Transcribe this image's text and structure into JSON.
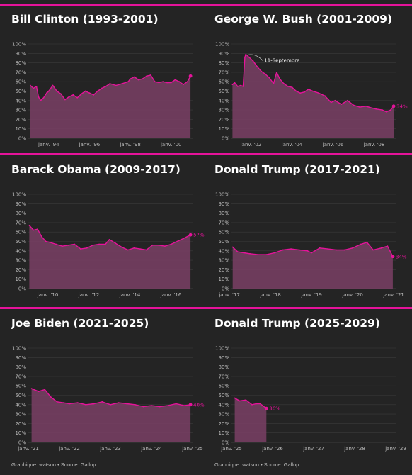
{
  "colors": {
    "accent": "#e5139a",
    "area": "#7a3f65",
    "line": "#e5139a",
    "grid": "#3a3a3a",
    "text": "#bdbdbd",
    "background": "#242424"
  },
  "footer": {
    "credit": "Graphique: watson",
    "separator": "•",
    "source": "Source: Gallup"
  },
  "chart_data": [
    {
      "type": "area",
      "title": "Bill Clinton (1993-2001)",
      "xlabel": "",
      "ylabel": "",
      "xlim": [
        1993.0,
        2001.05
      ],
      "ylim": [
        0,
        100
      ],
      "yticks": [
        "0%",
        "10%",
        "20%",
        "30%",
        "40%",
        "50%",
        "60%",
        "70%",
        "80%",
        "90%",
        "100%"
      ],
      "xticks": [
        {
          "x": 1994.0,
          "label": "janv. '94"
        },
        {
          "x": 1996.0,
          "label": "janv. '96"
        },
        {
          "x": 1998.0,
          "label": "janv. '98"
        },
        {
          "x": 2000.0,
          "label": "janv. '00"
        }
      ],
      "x": [
        1993.1,
        1993.25,
        1993.4,
        1993.5,
        1993.6,
        1993.75,
        1993.9,
        1994.0,
        1994.2,
        1994.4,
        1994.6,
        1994.8,
        1995.0,
        1995.2,
        1995.4,
        1995.6,
        1995.8,
        1996.0,
        1996.2,
        1996.4,
        1996.6,
        1996.8,
        1997.0,
        1997.3,
        1997.6,
        1997.9,
        1998.0,
        1998.2,
        1998.4,
        1998.6,
        1998.8,
        1999.0,
        1999.2,
        1999.4,
        1999.6,
        1999.8,
        2000.0,
        2000.2,
        2000.4,
        2000.6,
        2000.8,
        2000.95
      ],
      "y": [
        56,
        53,
        55,
        44,
        40,
        43,
        48,
        50,
        56,
        50,
        47,
        41,
        44,
        46,
        43,
        47,
        50,
        48,
        46,
        50,
        53,
        55,
        58,
        56,
        58,
        60,
        63,
        65,
        62,
        63,
        66,
        67,
        60,
        59,
        60,
        59,
        59,
        62,
        60,
        57,
        60,
        66
      ],
      "end_label": ""
    },
    {
      "type": "area",
      "title": "George W. Bush (2001-2009)",
      "xlabel": "",
      "ylabel": "",
      "xlim": [
        2001.05,
        2009.05
      ],
      "ylim": [
        0,
        100
      ],
      "yticks": [
        "0%",
        "10%",
        "20%",
        "30%",
        "40%",
        "50%",
        "60%",
        "70%",
        "80%",
        "90%",
        "100%"
      ],
      "xticks": [
        {
          "x": 2002.0,
          "label": "janv. '02"
        },
        {
          "x": 2004.0,
          "label": "janv. '04"
        },
        {
          "x": 2006.0,
          "label": "janv. '06"
        },
        {
          "x": 2008.0,
          "label": "janv. '08"
        }
      ],
      "x": [
        2001.1,
        2001.2,
        2001.35,
        2001.5,
        2001.62,
        2001.7,
        2001.75,
        2001.9,
        2002.1,
        2002.3,
        2002.5,
        2002.7,
        2002.9,
        2003.1,
        2003.25,
        2003.4,
        2003.6,
        2003.8,
        2004.0,
        2004.2,
        2004.4,
        2004.6,
        2004.8,
        2005.0,
        2005.3,
        2005.6,
        2005.9,
        2006.1,
        2006.4,
        2006.7,
        2007.0,
        2007.3,
        2007.6,
        2007.9,
        2008.1,
        2008.4,
        2008.6,
        2008.8,
        2008.95
      ],
      "y": [
        57,
        59,
        55,
        56,
        55,
        86,
        89,
        86,
        82,
        76,
        71,
        68,
        64,
        58,
        70,
        63,
        58,
        55,
        54,
        50,
        48,
        49,
        52,
        50,
        48,
        45,
        38,
        40,
        36,
        40,
        35,
        33,
        34,
        32,
        31,
        30,
        28,
        30,
        34
      ],
      "end_label": "34%",
      "annotation": {
        "x": 2001.75,
        "y": 89,
        "text": "11-Septembre"
      }
    },
    {
      "type": "area",
      "title": "Barack Obama (2009-2017)",
      "xlabel": "",
      "ylabel": "",
      "xlim": [
        2009.05,
        2017.05
      ],
      "ylim": [
        0,
        100
      ],
      "yticks": [
        "0%",
        "10%",
        "20%",
        "30%",
        "40%",
        "50%",
        "60%",
        "70%",
        "80%",
        "90%",
        "100%"
      ],
      "xticks": [
        {
          "x": 2010.0,
          "label": "janv. '10"
        },
        {
          "x": 2012.0,
          "label": "janv. '12"
        },
        {
          "x": 2014.0,
          "label": "janv. '14"
        },
        {
          "x": 2016.0,
          "label": "janv. '16"
        }
      ],
      "x": [
        2009.1,
        2009.3,
        2009.5,
        2009.7,
        2009.9,
        2010.1,
        2010.4,
        2010.7,
        2011.0,
        2011.3,
        2011.6,
        2011.9,
        2012.2,
        2012.5,
        2012.8,
        2013.0,
        2013.3,
        2013.6,
        2013.9,
        2014.2,
        2014.5,
        2014.8,
        2015.1,
        2015.4,
        2015.7,
        2016.0,
        2016.3,
        2016.6,
        2016.95
      ],
      "y": [
        67,
        62,
        63,
        55,
        50,
        49,
        47,
        45,
        46,
        47,
        42,
        43,
        46,
        47,
        47,
        52,
        48,
        44,
        41,
        43,
        42,
        41,
        46,
        46,
        45,
        47,
        50,
        53,
        57
      ],
      "end_label": "57%"
    },
    {
      "type": "area",
      "title": "Donald Trump (2017-2021)",
      "xlabel": "",
      "ylabel": "",
      "xlim": [
        2017.05,
        2021.05
      ],
      "ylim": [
        0,
        100
      ],
      "yticks": [
        "0%",
        "10%",
        "20%",
        "30%",
        "40%",
        "50%",
        "60%",
        "70%",
        "80%",
        "90%",
        "100%"
      ],
      "xticks": [
        {
          "x": 2017.0,
          "label": "janv. '17"
        },
        {
          "x": 2018.0,
          "label": "janv. '18"
        },
        {
          "x": 2019.0,
          "label": "janv. '19"
        },
        {
          "x": 2020.0,
          "label": "janv. '20"
        },
        {
          "x": 2021.0,
          "label": "janv. '21"
        }
      ],
      "x": [
        2017.08,
        2017.2,
        2017.35,
        2017.5,
        2017.7,
        2017.9,
        2018.1,
        2018.3,
        2018.5,
        2018.7,
        2018.9,
        2019.0,
        2019.2,
        2019.4,
        2019.6,
        2019.8,
        2020.0,
        2020.2,
        2020.35,
        2020.5,
        2020.7,
        2020.85,
        2020.98
      ],
      "y": [
        44,
        39,
        38,
        37,
        36,
        36,
        38,
        41,
        42,
        41,
        40,
        38,
        43,
        42,
        41,
        41,
        43,
        47,
        49,
        41,
        43,
        45,
        34
      ],
      "end_label": "34%"
    },
    {
      "type": "area",
      "title": "Joe Biden (2021-2025)",
      "xlabel": "",
      "ylabel": "",
      "xlim": [
        2021.0,
        2025.0
      ],
      "ylim": [
        0,
        100
      ],
      "yticks": [
        "0%",
        "10%",
        "20%",
        "30%",
        "40%",
        "50%",
        "60%",
        "70%",
        "80%",
        "90%",
        "100%"
      ],
      "xticks": [
        {
          "x": 2021.0,
          "label": "janv. '21"
        },
        {
          "x": 2022.0,
          "label": "janv. '22"
        },
        {
          "x": 2023.0,
          "label": "janv. '23"
        },
        {
          "x": 2024.0,
          "label": "janv. '24"
        },
        {
          "x": 2025.0,
          "label": "janv. '25"
        }
      ],
      "x": [
        2021.08,
        2021.25,
        2021.4,
        2021.55,
        2021.7,
        2021.85,
        2022.0,
        2022.2,
        2022.4,
        2022.6,
        2022.8,
        2023.0,
        2023.2,
        2023.4,
        2023.6,
        2023.8,
        2024.0,
        2024.2,
        2024.4,
        2024.6,
        2024.8,
        2024.95
      ],
      "y": [
        57,
        54,
        56,
        48,
        43,
        42,
        41,
        42,
        40,
        41,
        43,
        40,
        42,
        41,
        40,
        38,
        39,
        38,
        39,
        41,
        39,
        40
      ],
      "end_label": "40%"
    },
    {
      "type": "area",
      "title": "Donald Trump (2025-2029)",
      "xlabel": "",
      "ylabel": "",
      "xlim": [
        2025.0,
        2029.0
      ],
      "ylim": [
        0,
        100
      ],
      "yticks": [
        "0%",
        "10%",
        "20%",
        "30%",
        "40%",
        "50%",
        "60%",
        "70%",
        "80%",
        "90%",
        "100%"
      ],
      "xticks": [
        {
          "x": 2025.0,
          "label": "janv. '25"
        },
        {
          "x": 2026.0,
          "label": "janv. '26"
        },
        {
          "x": 2027.0,
          "label": "janv. '27"
        },
        {
          "x": 2028.0,
          "label": "janv. '28"
        },
        {
          "x": 2029.0,
          "label": "janv. '29"
        }
      ],
      "x": [
        2025.08,
        2025.2,
        2025.35,
        2025.5,
        2025.6,
        2025.7,
        2025.85
      ],
      "y": [
        47,
        44,
        45,
        40,
        41,
        41,
        36
      ],
      "end_label": "36%"
    }
  ]
}
